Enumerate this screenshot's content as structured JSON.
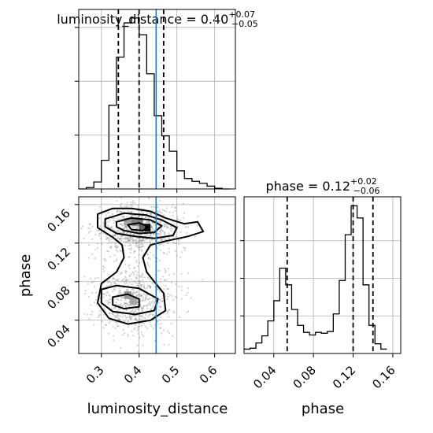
{
  "chart_data": [
    {
      "type": "histogram",
      "panel": "luminosity_distance-marginal",
      "title_param": "luminosity_distance",
      "title_value": "0.40",
      "title_plus": "+0.07",
      "title_minus": "−0.05",
      "xlim": [
        0.24,
        0.655
      ],
      "bins": [
        0.24,
        0.26,
        0.28,
        0.3,
        0.32,
        0.34,
        0.36,
        0.38,
        0.4,
        0.42,
        0.44,
        0.46,
        0.48,
        0.5,
        0.52,
        0.54,
        0.56,
        0.58,
        0.6,
        0.62,
        0.64
      ],
      "counts": [
        0,
        2,
        10,
        41,
        120,
        189,
        238,
        245,
        221,
        165,
        105,
        76,
        54,
        26,
        15,
        11,
        8,
        4,
        1,
        0
      ],
      "quantiles": [
        0.345,
        0.4,
        0.465
      ],
      "truth": 0.445,
      "grid": true
    },
    {
      "type": "histogram",
      "panel": "phase-marginal",
      "title_param": "phase",
      "title_value": "0.12",
      "title_plus": "+0.02",
      "title_minus": "−0.06",
      "xlim": [
        0.01,
        0.168
      ],
      "xticks": [
        "0.04",
        "0.08",
        "0.12",
        "0.16"
      ],
      "xlabel": "phase",
      "bins": [
        0.01,
        0.016,
        0.022,
        0.028,
        0.034,
        0.04,
        0.046,
        0.052,
        0.058,
        0.064,
        0.07,
        0.076,
        0.082,
        0.088,
        0.094,
        0.1,
        0.106,
        0.112,
        0.118,
        0.124,
        0.13,
        0.136,
        0.142,
        0.148,
        0.154
      ],
      "counts": [
        5,
        6,
        12,
        20,
        37,
        60,
        97,
        78,
        50,
        32,
        24,
        21,
        24,
        23,
        25,
        45,
        83,
        135,
        168,
        154,
        78,
        32,
        11,
        5
      ],
      "quantiles": [
        0.0535,
        0.12,
        0.14
      ],
      "grid": true
    },
    {
      "type": "scatter-contour",
      "panel": "joint",
      "xlim": [
        0.24,
        0.655
      ],
      "ylim": [
        0.0055,
        0.168
      ],
      "xticks": [
        "0.3",
        "0.4",
        "0.5",
        "0.6"
      ],
      "yticks": [
        "0.04",
        "0.08",
        "0.12",
        "0.16"
      ],
      "xlabel": "luminosity_distance",
      "ylabel": "phase",
      "truth_x": 0.445,
      "modes": [
        {
          "x": 0.4,
          "y": 0.135,
          "weight": 0.6
        },
        {
          "x": 0.37,
          "y": 0.059,
          "weight": 0.4
        }
      ],
      "grid": true
    }
  ]
}
